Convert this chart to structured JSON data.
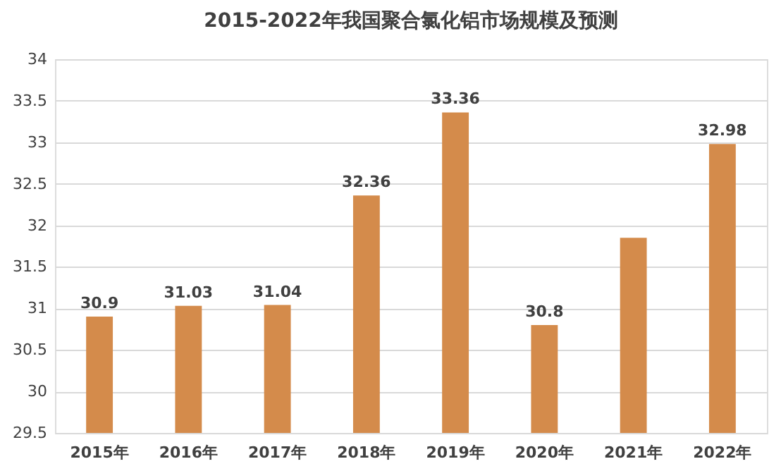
{
  "chart_data": {
    "type": "bar",
    "title": "2015-2022年我国聚合氯化铝市场规模及预测",
    "categories": [
      "2015年",
      "2016年",
      "2017年",
      "2018年",
      "2019年",
      "2020年",
      "2021年",
      "2022年"
    ],
    "values": [
      30.9,
      31.03,
      31.04,
      32.36,
      33.36,
      30.8,
      31.85,
      32.98
    ],
    "value_labels": [
      "30.9",
      "31.03",
      "31.04",
      "32.36",
      "33.36",
      "30.8",
      null,
      "32.98"
    ],
    "color": "#d48b4b",
    "ylim": [
      29.5,
      34
    ],
    "yticks": [
      29.5,
      30,
      30.5,
      31,
      31.5,
      32,
      32.5,
      33,
      33.5,
      34
    ],
    "grid": "y"
  }
}
